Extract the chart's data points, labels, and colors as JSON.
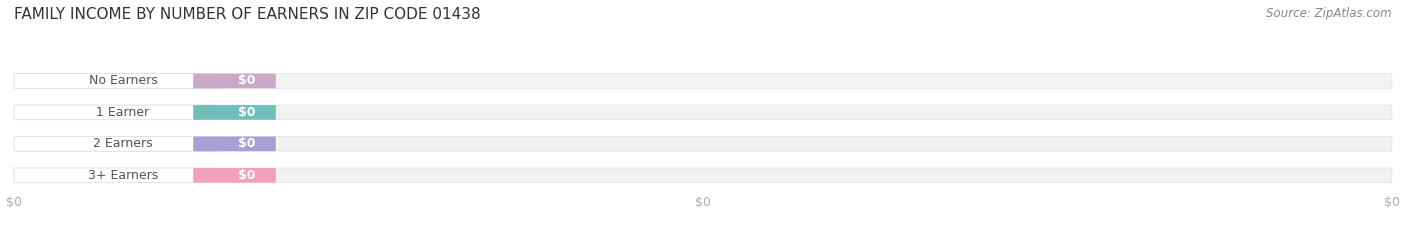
{
  "title": "FAMILY INCOME BY NUMBER OF EARNERS IN ZIP CODE 01438",
  "source": "Source: ZipAtlas.com",
  "categories": [
    "No Earners",
    "1 Earner",
    "2 Earners",
    "3+ Earners"
  ],
  "values": [
    0,
    0,
    0,
    0
  ],
  "bar_colors": [
    "#c9a8c8",
    "#6dbfb8",
    "#a89fd4",
    "#f0a0b8"
  ],
  "track_color": "#f2f2f2",
  "track_edge_color": "#e0e0e0",
  "background_color": "#ffffff",
  "title_fontsize": 11,
  "label_fontsize": 9,
  "source_fontsize": 8.5,
  "tick_label_color": "#aaaaaa",
  "category_label_color": "#555555",
  "value_label_color": "#ffffff",
  "white_pill_color": "#ffffff",
  "white_pill_edge_color": "#dddddd"
}
